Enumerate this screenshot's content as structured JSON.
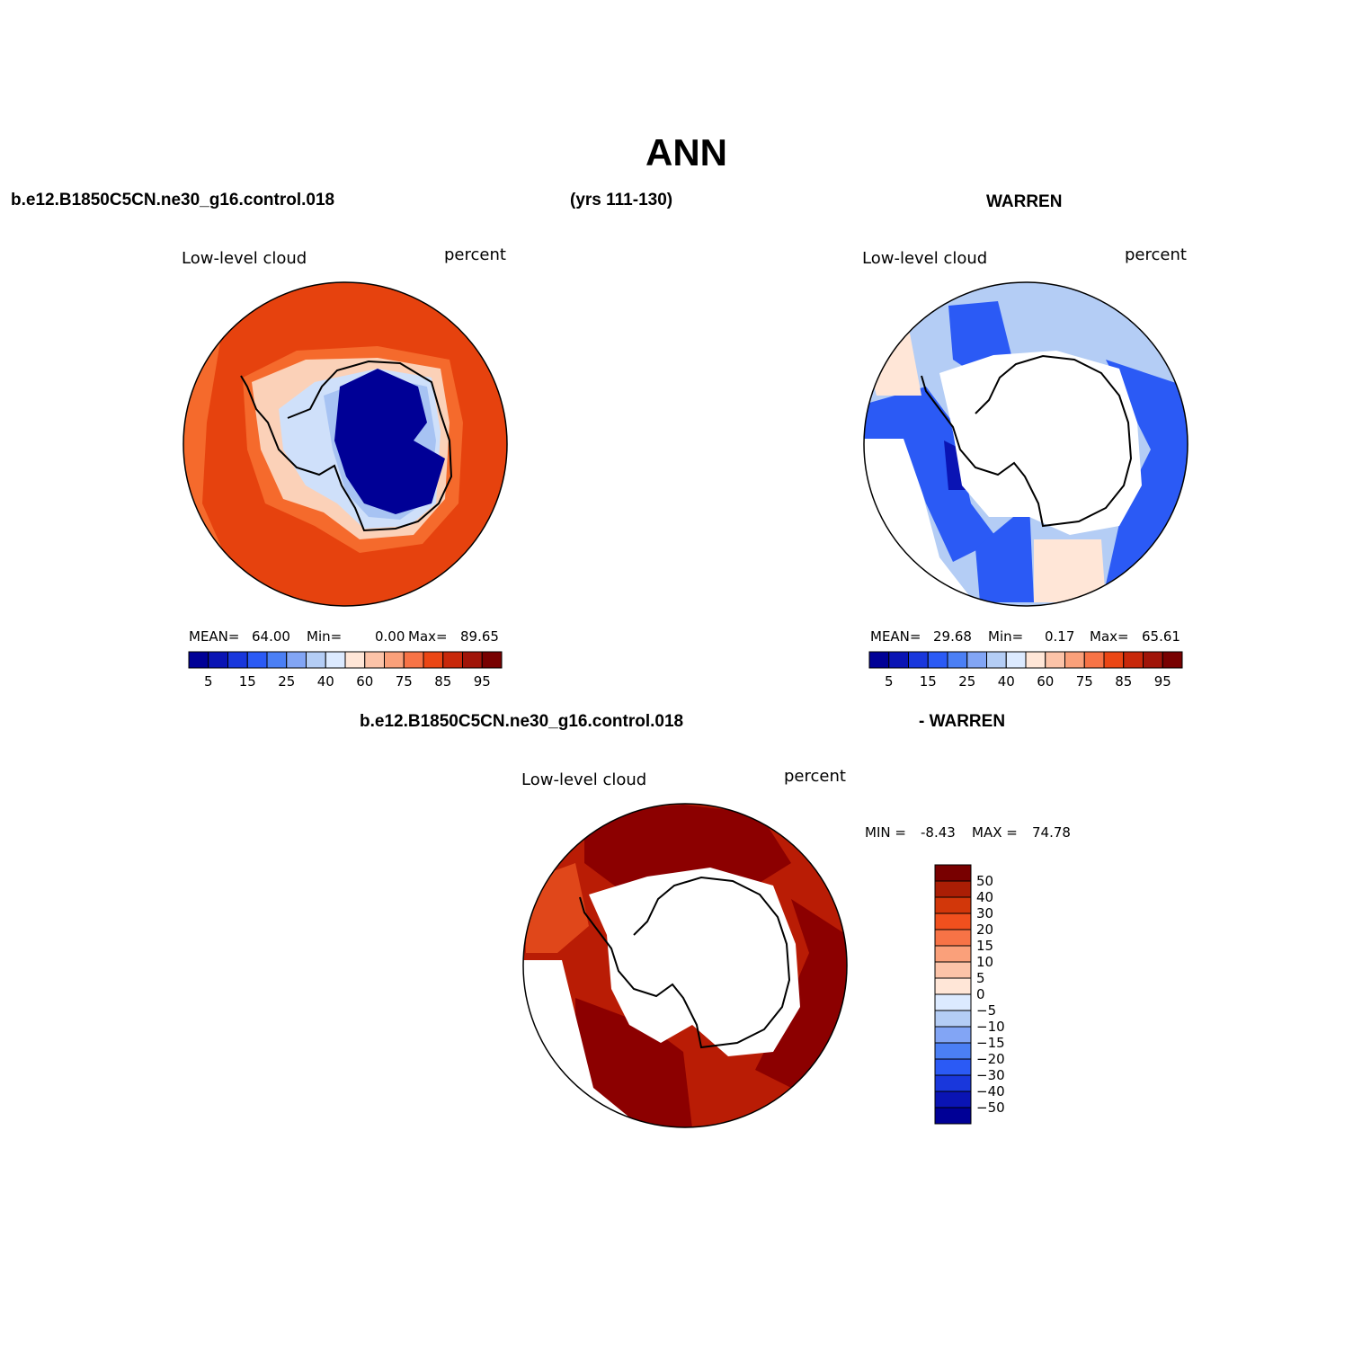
{
  "page": {
    "title": "ANN",
    "top_left_header": "b.e12.B1850C5CN.ne30_g16.control.018",
    "top_mid_header": "(yrs 111-130)",
    "top_right_header": "WARREN",
    "bottom_header_left": "b.e12.B1850C5CN.ne30_g16.control.018",
    "bottom_header_right": "- WARREN"
  },
  "panels": {
    "model": {
      "left_label": "Low-level cloud",
      "right_label": "percent",
      "stats": {
        "mean_label": "MEAN=",
        "mean": "64.00",
        "min_label": "Min=",
        "min": "0.00",
        "max_label": "Max=",
        "max": "89.65"
      }
    },
    "obs": {
      "left_label": "Low-level cloud",
      "right_label": "percent",
      "stats": {
        "mean_label": "MEAN=",
        "mean": "29.68",
        "min_label": "Min=",
        "min": "0.17",
        "max_label": "Max=",
        "max": "65.61"
      }
    },
    "diff": {
      "left_label": "Low-level cloud",
      "right_label": "percent",
      "minmax": {
        "min_label": "MIN =",
        "min": "-8.43",
        "max_label": "MAX =",
        "max": "74.78"
      }
    }
  },
  "colorbars": {
    "abs": {
      "colors": [
        "#000096",
        "#0a14b4",
        "#1937dc",
        "#2b5af5",
        "#4b7ff5",
        "#82a5f5",
        "#b4cdf5",
        "#dceaff",
        "#ffe6d7",
        "#fcc3a8",
        "#faa07a",
        "#f77346",
        "#eb4614",
        "#c8280a",
        "#a01408",
        "#780000"
      ],
      "tick_labels": [
        "5",
        "15",
        "25",
        "40",
        "60",
        "75",
        "85",
        "95"
      ]
    },
    "diff": {
      "colors": [
        "#780000",
        "#aa1e05",
        "#d2370a",
        "#f0501e",
        "#f77346",
        "#faa07a",
        "#fcc3a8",
        "#ffe6d7",
        "#dceaff",
        "#b4cdf5",
        "#82a5f5",
        "#4b7ff5",
        "#2b5af5",
        "#1937dc",
        "#0a14b4",
        "#000096"
      ],
      "tick_labels": [
        "50",
        "40",
        "30",
        "20",
        "15",
        "10",
        "5",
        "0",
        "-5",
        "-10",
        "-15",
        "-20",
        "-30",
        "-40",
        "-50"
      ]
    }
  },
  "map_colors": {
    "ocean_model": "#e6420e",
    "ocean_model_dark": "#d9360a",
    "ocean_model_light": "#f56a2c",
    "coast_model_pale": "#fbd1b8",
    "land_model_light": "#cfe0fa",
    "land_model_mid": "#a7c3f3",
    "land_model_core": "#000096",
    "obs_light": "#b4cdf5",
    "obs_mid": "#2b5af5",
    "obs_dark": "#0a14b4",
    "obs_pale_red": "#ffe6d7",
    "diff_dark": "#8c0000",
    "diff_mid": "#b91c05",
    "diff_light": "#e0471a",
    "missing": "#ffffff",
    "coast_line": "#000000"
  }
}
